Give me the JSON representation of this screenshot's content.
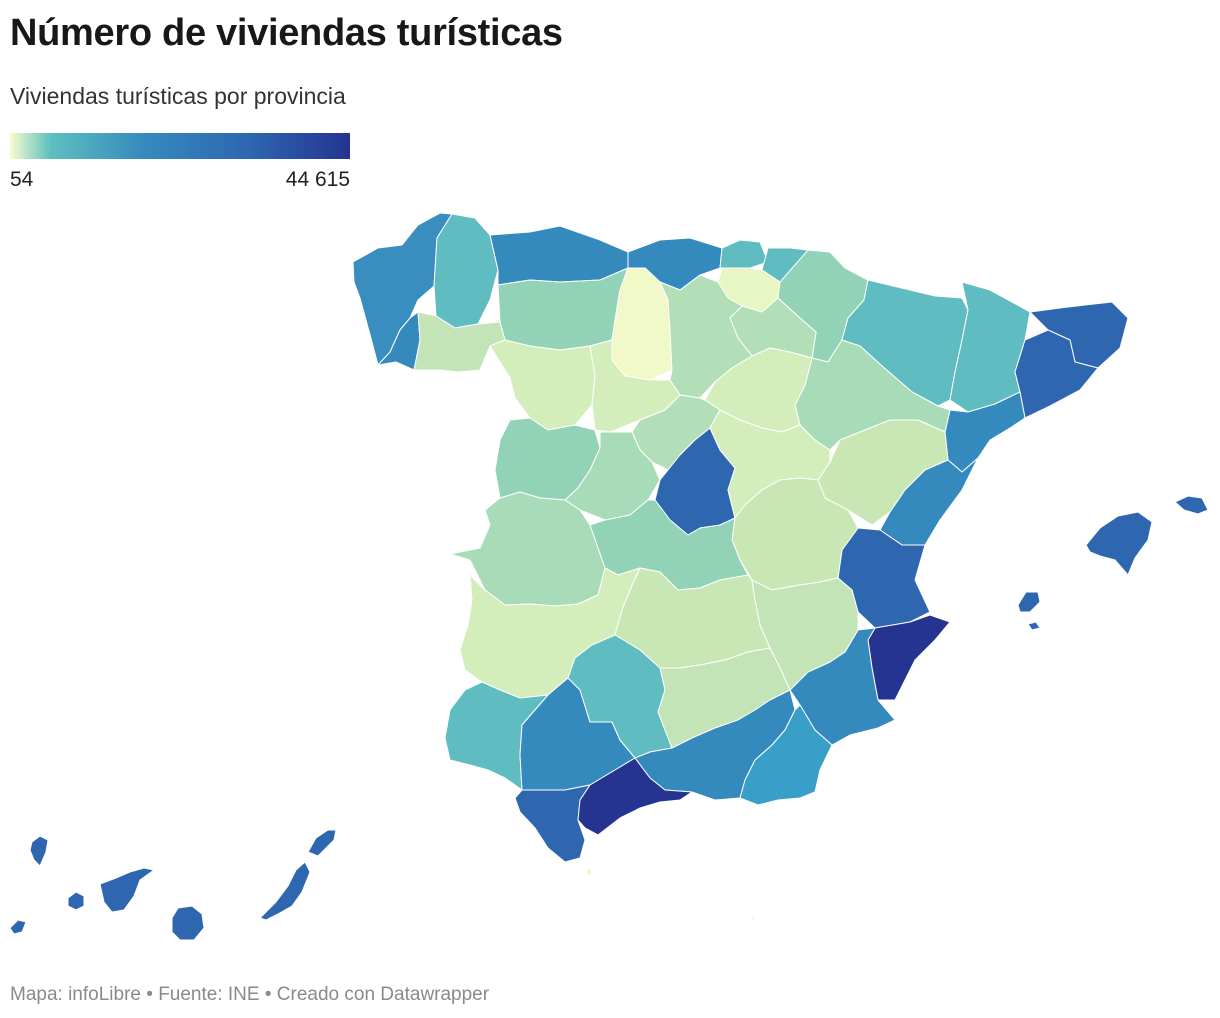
{
  "title": "Número de viviendas turísticas",
  "subtitle": "Viviendas turísticas por provincia",
  "legend": {
    "min_label": "54",
    "max_label": "44 615",
    "min_value": 54,
    "max_value": 44615,
    "gradient": [
      "#f7fcce",
      "#5ebfc0",
      "#3489bd",
      "#2e67b0",
      "#243490"
    ]
  },
  "footer": {
    "map_credit": "Mapa: infoLibre",
    "source": "Fuente: INE",
    "tool": "Creado con Datawrapper",
    "separator": "•"
  },
  "regions": [
    {
      "id": "a-coruna",
      "color": "#3a8dbf"
    },
    {
      "id": "lugo",
      "color": "#5fbcc0"
    },
    {
      "id": "pontevedra",
      "color": "#3489bd"
    },
    {
      "id": "ourense",
      "color": "#c3e4b6"
    },
    {
      "id": "asturias",
      "color": "#3489bd"
    },
    {
      "id": "cantabria",
      "color": "#3489bd"
    },
    {
      "id": "bizkaia",
      "color": "#5fbcc0"
    },
    {
      "id": "gipuzkoa",
      "color": "#5fbcc0"
    },
    {
      "id": "alava",
      "color": "#e8f6c4"
    },
    {
      "id": "navarra",
      "color": "#92d3b8"
    },
    {
      "id": "la-rioja",
      "color": "#b3dfb8"
    },
    {
      "id": "huesca",
      "color": "#5fbcc0"
    },
    {
      "id": "girona",
      "color": "#2e67b0"
    },
    {
      "id": "barcelona",
      "color": "#2e67b0"
    },
    {
      "id": "lleida",
      "color": "#5fbcc0"
    },
    {
      "id": "tarragona",
      "color": "#3489bd"
    },
    {
      "id": "zaragoza",
      "color": "#a8dbb8"
    },
    {
      "id": "teruel",
      "color": "#c8e7b4"
    },
    {
      "id": "castellon",
      "color": "#3489bd"
    },
    {
      "id": "valencia",
      "color": "#2e67b0"
    },
    {
      "id": "alicante",
      "color": "#243490"
    },
    {
      "id": "murcia",
      "color": "#3489bd"
    },
    {
      "id": "leon",
      "color": "#92d3b8"
    },
    {
      "id": "burgos",
      "color": "#b3dfb8"
    },
    {
      "id": "palencia",
      "color": "#f1f9c9"
    },
    {
      "id": "zamora",
      "color": "#d3edbb"
    },
    {
      "id": "valladolid",
      "color": "#d3edbb"
    },
    {
      "id": "soria",
      "color": "#d3edbb"
    },
    {
      "id": "segovia",
      "color": "#b3dfb8"
    },
    {
      "id": "salamanca",
      "color": "#92d3b8"
    },
    {
      "id": "avila",
      "color": "#a8dbb8"
    },
    {
      "id": "madrid",
      "color": "#2e67b0"
    },
    {
      "id": "guadalajara",
      "color": "#d3edbb"
    },
    {
      "id": "cuenca",
      "color": "#c8e7b4"
    },
    {
      "id": "caceres",
      "color": "#a8dbb8"
    },
    {
      "id": "toledo",
      "color": "#92d3b8"
    },
    {
      "id": "badajoz",
      "color": "#d3edbb"
    },
    {
      "id": "ciudad-real",
      "color": "#c8e7b4"
    },
    {
      "id": "albacete",
      "color": "#c3e4b6"
    },
    {
      "id": "huelva",
      "color": "#5fbcc0"
    },
    {
      "id": "sevilla",
      "color": "#3489bd"
    },
    {
      "id": "cordoba",
      "color": "#5fbcc0"
    },
    {
      "id": "jaen",
      "color": "#c3e4b6"
    },
    {
      "id": "granada",
      "color": "#3489bd"
    },
    {
      "id": "almeria",
      "color": "#3a9fc8"
    },
    {
      "id": "cadiz",
      "color": "#2e67b0"
    },
    {
      "id": "malaga",
      "color": "#243490"
    },
    {
      "id": "mallorca",
      "color": "#2e67b0"
    },
    {
      "id": "menorca",
      "color": "#2e67b0"
    },
    {
      "id": "ibiza",
      "color": "#2e67b0"
    },
    {
      "id": "formentera",
      "color": "#2e67b0"
    },
    {
      "id": "la-palma",
      "color": "#2e67b0"
    },
    {
      "id": "el-hierro",
      "color": "#2e67b0"
    },
    {
      "id": "la-gomera",
      "color": "#2e67b0"
    },
    {
      "id": "tenerife",
      "color": "#2e67b0"
    },
    {
      "id": "gran-canaria",
      "color": "#2e67b0"
    },
    {
      "id": "fuerteventura",
      "color": "#2e67b0"
    },
    {
      "id": "lanzarote",
      "color": "#2e67b0"
    },
    {
      "id": "ceuta",
      "color": "#f1f9c9"
    },
    {
      "id": "melilla",
      "color": "#f1f9c9"
    }
  ]
}
